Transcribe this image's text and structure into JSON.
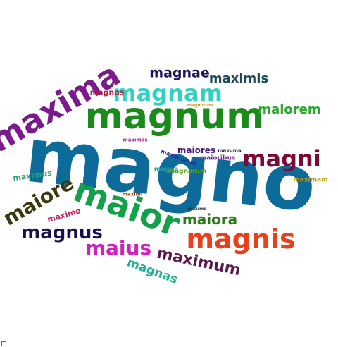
{
  "words": [
    {
      "text": "magno",
      "color": "#0c6b99"
    },
    {
      "text": "magnum",
      "color": "#1a8a1a"
    },
    {
      "text": "maxima",
      "color": "#7a1a8c"
    },
    {
      "text": "magnam",
      "color": "#2fd1c2"
    },
    {
      "text": "magnae",
      "color": "#1c1460"
    },
    {
      "text": "maximis",
      "color": "#1c4a5a"
    },
    {
      "text": "magnos",
      "color": "#b22040"
    },
    {
      "text": "maiorem",
      "color": "#2aa62a"
    },
    {
      "text": "magnorum",
      "color": "#c89a20"
    },
    {
      "text": "maiores",
      "color": "#4a1a80"
    },
    {
      "text": "maxuma",
      "color": "#3a2a50"
    },
    {
      "text": "maximas",
      "color": "#a0208a"
    },
    {
      "text": "maximus",
      "color": "#30a070"
    },
    {
      "text": "maioribus",
      "color": "#7a2a90"
    },
    {
      "text": "magni",
      "color": "#7a0a3a"
    },
    {
      "text": "maiore",
      "color": "#3a3a10"
    },
    {
      "text": "maior",
      "color": "#12a04a"
    },
    {
      "text": "maximam",
      "color": "#c0a010"
    },
    {
      "text": "maximo",
      "color": "#c02060"
    },
    {
      "text": "maximi",
      "color": "#804020"
    },
    {
      "text": "magnus",
      "color": "#1a1050"
    },
    {
      "text": "maxime",
      "color": "#303030"
    },
    {
      "text": "maiora",
      "color": "#2a7a1a"
    },
    {
      "text": "magnis",
      "color": "#e8401a"
    },
    {
      "text": "maius",
      "color": "#d020c0"
    },
    {
      "text": "maximum",
      "color": "#5a1a50"
    },
    {
      "text": "magnas",
      "color": "#20b090"
    },
    {
      "text": "maximumus",
      "color": "#2a2a9a"
    },
    {
      "text": "magna",
      "color": "#20a0a0"
    },
    {
      "text": "magnarum",
      "color": "#60a020"
    }
  ]
}
